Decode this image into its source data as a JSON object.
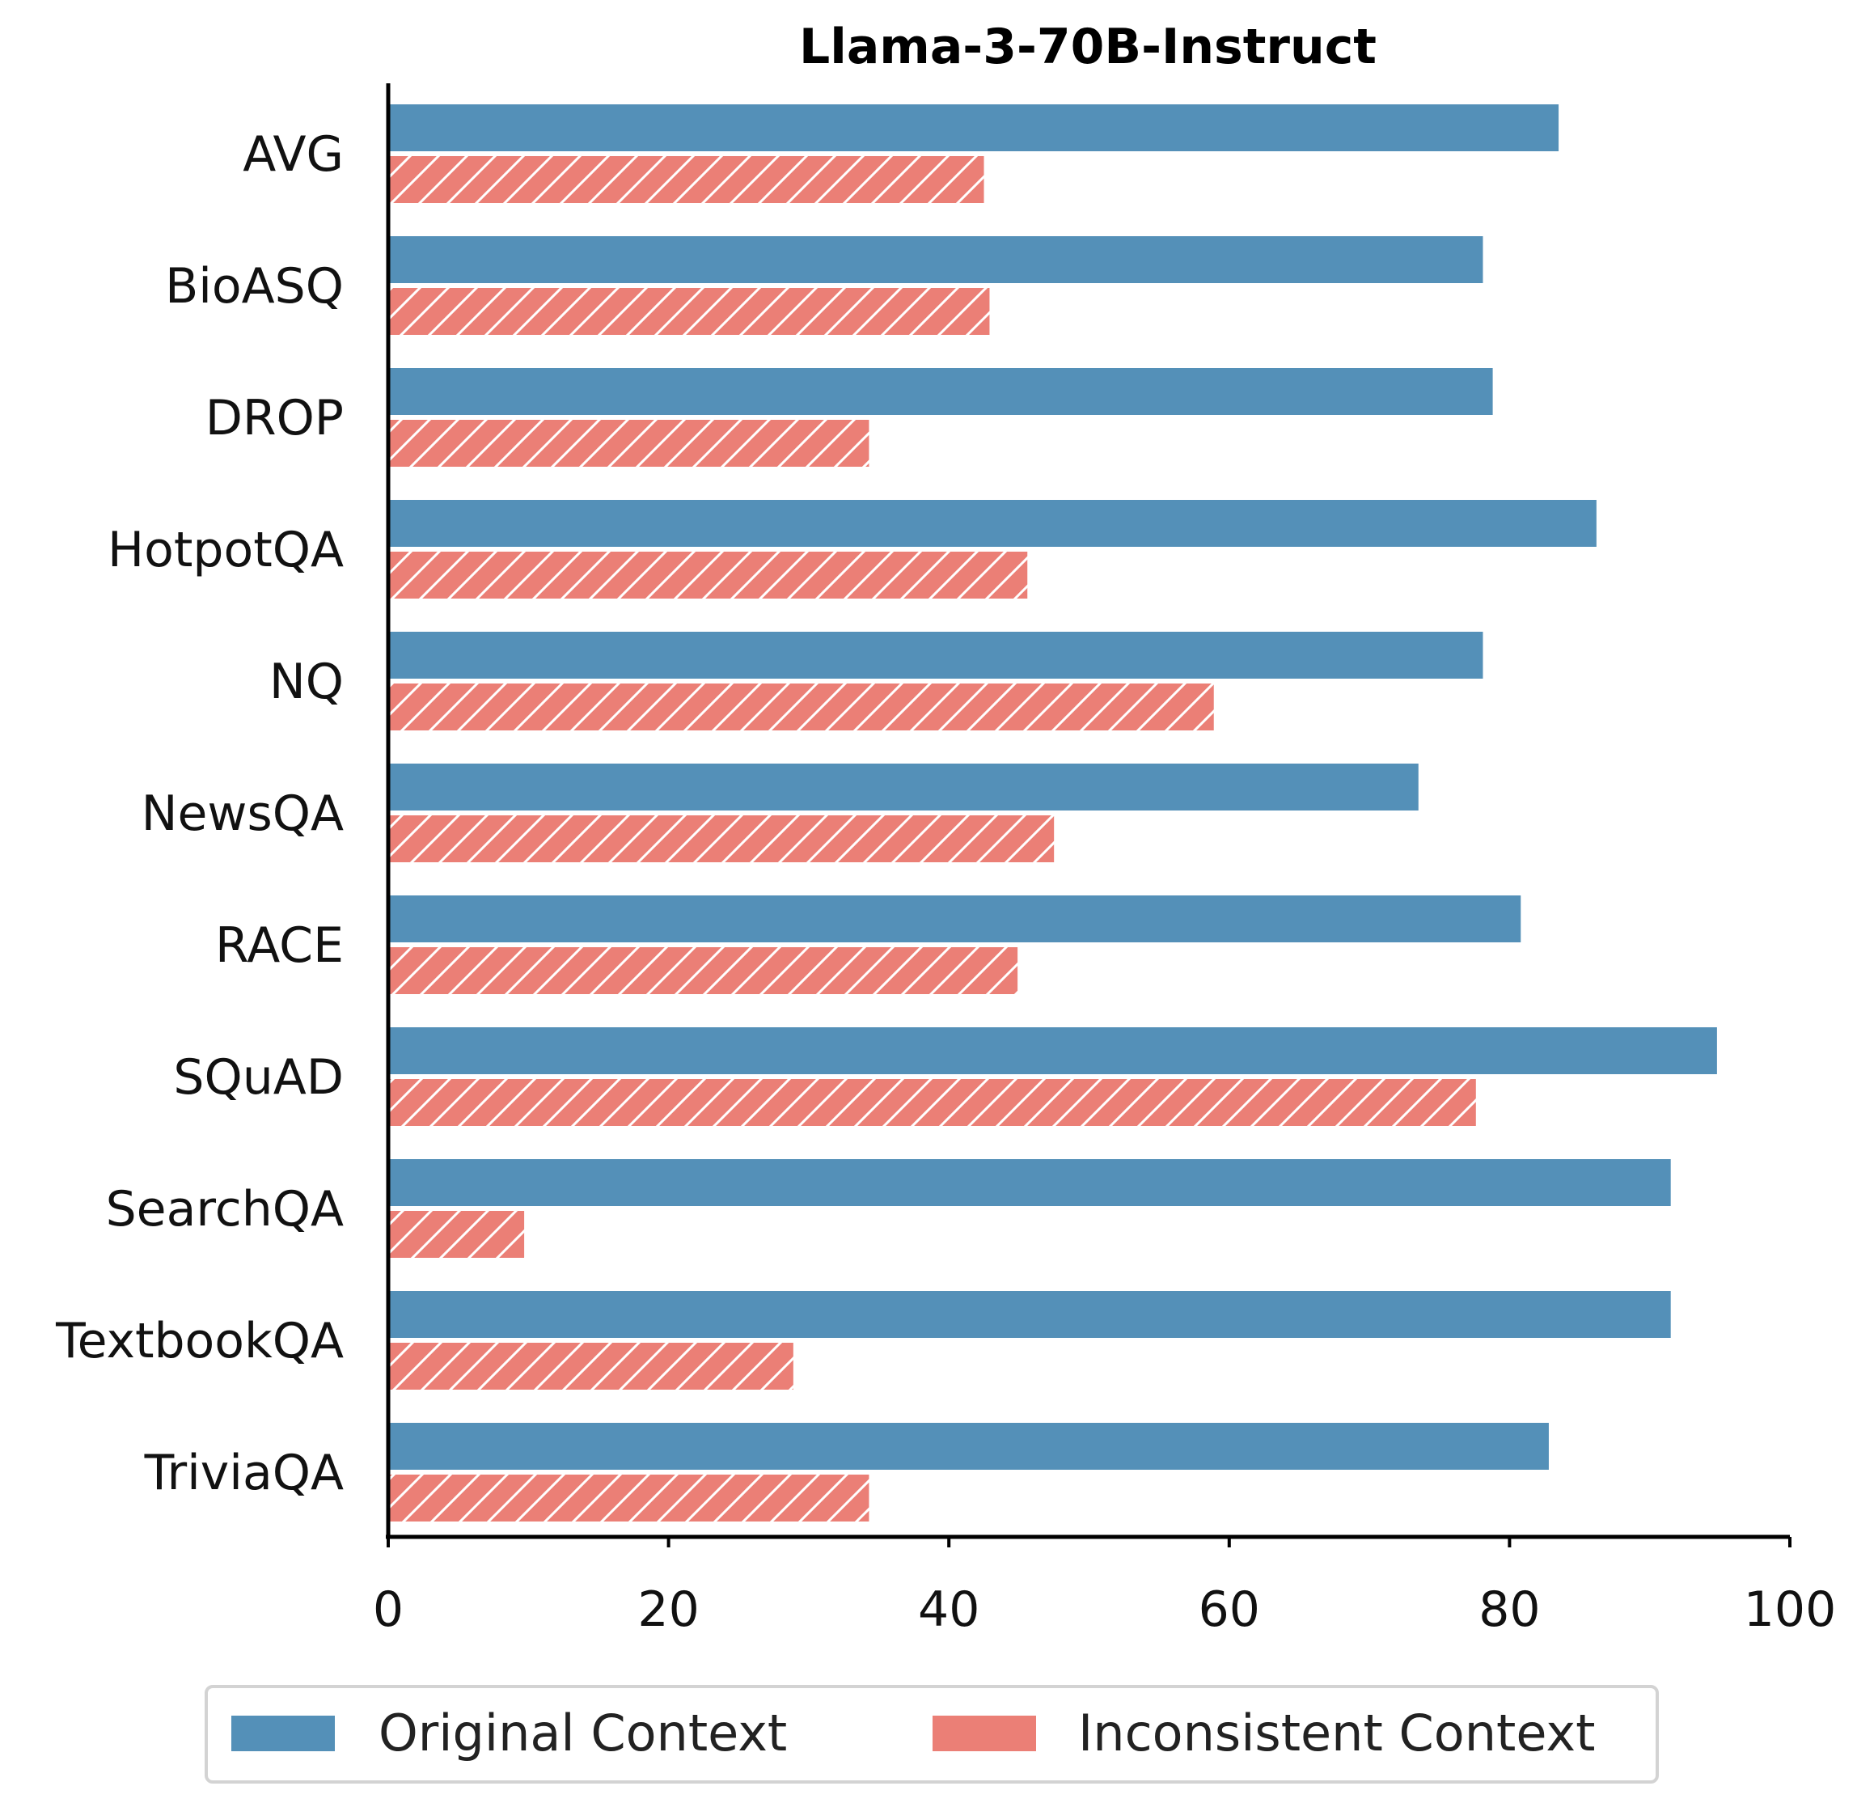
{
  "chart_data": {
    "type": "bar",
    "orientation": "horizontal",
    "title": "Llama-3-70B-Instruct",
    "xlabel": "",
    "ylabel": "",
    "xlim": [
      0,
      100
    ],
    "xticks": [
      "0",
      "20",
      "40",
      "60",
      "80",
      "100"
    ],
    "categories": [
      "AVG",
      "BioASQ",
      "DROP",
      "HotpotQA",
      "NQ",
      "NewsQA",
      "RACE",
      "SQuAD",
      "SearchQA",
      "TextbookQA",
      "TriviaQA"
    ],
    "series": [
      {
        "name": "Original Context",
        "color": "#5490b8",
        "values": [
          83.5,
          78.1,
          78.8,
          86.2,
          78.1,
          73.5,
          80.8,
          94.8,
          91.5,
          91.5,
          82.8
        ]
      },
      {
        "name": "Inconsistent Context",
        "color": "#eb7f76",
        "pattern": "hatch-diagonal",
        "values": [
          42.5,
          42.9,
          34.3,
          45.6,
          58.9,
          47.5,
          44.9,
          77.6,
          9.7,
          28.9,
          34.3
        ]
      }
    ],
    "grid": false,
    "legend_position": "bottom-center"
  }
}
